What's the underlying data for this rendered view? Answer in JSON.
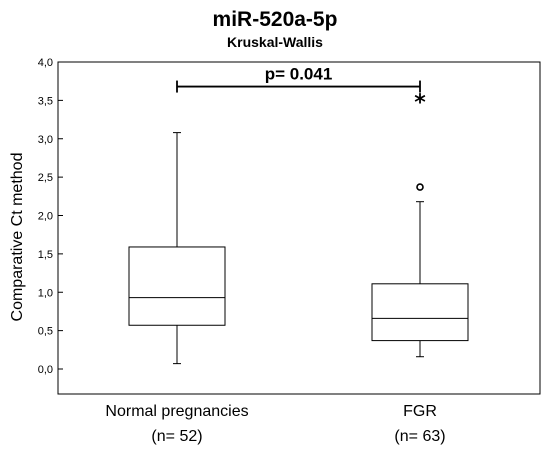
{
  "chart_data": {
    "type": "box",
    "title": "miR-520a-5p",
    "subtitle": "Kruskal-Wallis",
    "ylabel": "Comparative Ct method",
    "xlabel": "",
    "ylim": [
      -0.4,
      4.0
    ],
    "yticks": [
      0.0,
      0.5,
      1.0,
      1.5,
      2.0,
      2.5,
      3.0,
      3.5,
      4.0
    ],
    "ytick_labels": [
      "0,0",
      "0,5",
      "1,0",
      "1,5",
      "2,0",
      "2,5",
      "3,0",
      "3,5",
      "4,0"
    ],
    "categories": [
      {
        "name": "Normal pregnancies",
        "n_label": "(n= 52)"
      },
      {
        "name": "FGR",
        "n_label": "(n= 63)"
      }
    ],
    "boxes": [
      {
        "whisker_low": 0.07,
        "q1": 0.57,
        "median": 0.93,
        "q3": 1.59,
        "whisker_high": 3.08,
        "outliers": [],
        "extremes": []
      },
      {
        "whisker_low": 0.16,
        "q1": 0.37,
        "median": 0.66,
        "q3": 1.11,
        "whisker_high": 2.18,
        "outliers": [
          2.37
        ],
        "extremes": [
          3.5
        ]
      }
    ],
    "comparison": {
      "label": "p= 0.041",
      "y": 3.68,
      "from": 0,
      "to": 1
    },
    "grid": false
  }
}
